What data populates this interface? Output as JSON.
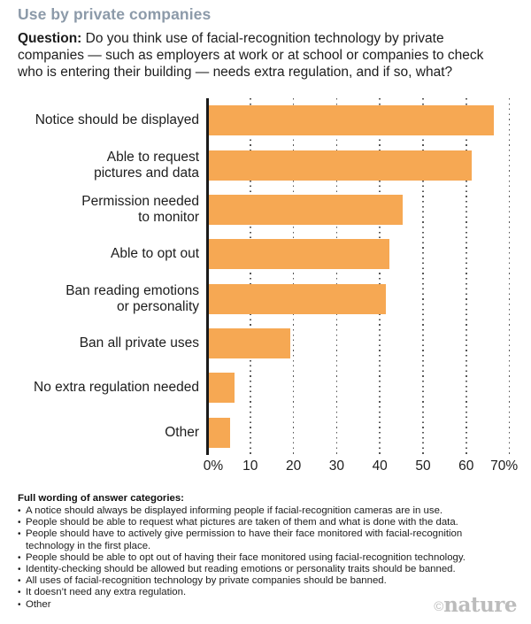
{
  "colors": {
    "title": "#8C9AA9",
    "bar": "#F6A853",
    "axis": "#1A1A1A",
    "gridline": "#555555",
    "watermark": "#BCBCBC"
  },
  "header": {
    "title": "Use by private companies",
    "question_label": "Question:",
    "question_text": " Do you think use of facial-recognition technology by private\ncompanies — such as employers at work or at school or companies to check\nwho is entering their building — needs extra regulation, and if so, what?"
  },
  "chart_data": {
    "type": "bar",
    "orientation": "horizontal",
    "title": "Use by private companies",
    "categories": [
      "Notice should be displayed",
      "Able to request\npictures and data",
      "Permission needed\nto monitor",
      "Able to opt out",
      "Ban reading emotions\nor personality",
      "Ban all private uses",
      "No extra regulation needed",
      "Other"
    ],
    "values": [
      66,
      61,
      45,
      42,
      41,
      19,
      6,
      5
    ],
    "unit": "%",
    "xlabel": "",
    "ylabel": "",
    "xlim": [
      0,
      70
    ],
    "tick_values": [
      0,
      10,
      20,
      30,
      40,
      50,
      60,
      70
    ],
    "tick_labels": [
      "0%",
      "10",
      "20",
      "30",
      "40",
      "50",
      "60",
      "70%"
    ],
    "grid": "dotted-vertical",
    "legend": "none"
  },
  "footer": {
    "heading": "Full wording of answer categories:",
    "bullets": [
      "A notice should always be displayed informing people if facial-recognition cameras are in use.",
      "People should be able to request what pictures are taken of them and what is done with the data.",
      "People should have to actively give permission to have their face monitored with facial-recognition technology in the first place.",
      "People should be able to opt out of having their face monitored using facial-recognition technology.",
      "Identity-checking should be allowed but reading emotions or personality traits should be banned.",
      "All uses of facial-recognition technology by private companies should be banned.",
      "It doesn’t need any extra regulation.",
      "Other"
    ]
  },
  "watermark": {
    "copyright": "©",
    "brand": "nature"
  }
}
